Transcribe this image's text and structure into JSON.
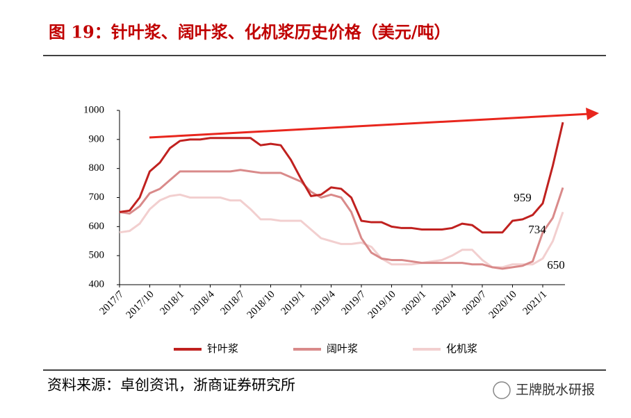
{
  "chart_data": {
    "type": "line",
    "title": "图 19：针叶浆、阔叶浆、化机浆历史价格（美元/吨）",
    "source": "资料来源：卓创资讯，浙商证券研究所",
    "brand": "王牌脱水研报",
    "categories": [
      "2017/7",
      null,
      null,
      "2017/10",
      null,
      null,
      "2018/1",
      null,
      null,
      "2018/4",
      null,
      null,
      "2018/7",
      null,
      null,
      "2018/10",
      null,
      null,
      "2019/1",
      null,
      null,
      "2019/4",
      null,
      null,
      "2019/7",
      null,
      null,
      "2019/10",
      null,
      null,
      "2020/1",
      null,
      null,
      "2020/4",
      null,
      null,
      "2020/7",
      null,
      null,
      "2020/10",
      null,
      null,
      "2021/1",
      null,
      null
    ],
    "series": [
      {
        "name": "针叶浆",
        "color": "#c0211f",
        "values": [
          650,
          655,
          700,
          790,
          820,
          870,
          895,
          900,
          900,
          905,
          905,
          905,
          905,
          905,
          880,
          885,
          880,
          830,
          765,
          705,
          710,
          735,
          730,
          700,
          620,
          615,
          615,
          600,
          595,
          595,
          590,
          590,
          590,
          595,
          610,
          605,
          580,
          580,
          580,
          620,
          625,
          640,
          680,
          810,
          959
        ],
        "value_labels": [
          null,
          null,
          null,
          null,
          null,
          null,
          null,
          null,
          null,
          null,
          null,
          null,
          null,
          null,
          null,
          null,
          null,
          null,
          null,
          null,
          null,
          null,
          null,
          null,
          null,
          null,
          null,
          null,
          null,
          null,
          null,
          null,
          null,
          null,
          null,
          null,
          null,
          null,
          null,
          null,
          null,
          null,
          null,
          null,
          "959"
        ]
      },
      {
        "name": "阔叶浆",
        "color": "#d98a8a",
        "values": [
          650,
          645,
          670,
          715,
          730,
          760,
          790,
          790,
          790,
          790,
          790,
          790,
          795,
          790,
          785,
          785,
          785,
          770,
          755,
          720,
          700,
          710,
          700,
          650,
          560,
          510,
          490,
          485,
          485,
          480,
          475,
          475,
          475,
          475,
          475,
          470,
          470,
          460,
          455,
          460,
          465,
          480,
          580,
          630,
          734
        ],
        "value_labels": [
          null,
          null,
          null,
          null,
          null,
          null,
          null,
          null,
          null,
          null,
          null,
          null,
          null,
          null,
          null,
          null,
          null,
          null,
          null,
          null,
          null,
          null,
          null,
          null,
          null,
          null,
          null,
          null,
          null,
          null,
          null,
          null,
          null,
          null,
          null,
          null,
          null,
          null,
          null,
          null,
          null,
          null,
          null,
          null,
          "734"
        ]
      },
      {
        "name": "化机浆",
        "color": "#f2cfcf",
        "values": [
          580,
          585,
          610,
          660,
          690,
          705,
          710,
          700,
          700,
          700,
          700,
          690,
          690,
          660,
          625,
          625,
          620,
          620,
          620,
          590,
          560,
          550,
          540,
          540,
          545,
          530,
          490,
          470,
          470,
          470,
          475,
          480,
          485,
          500,
          520,
          520,
          485,
          460,
          460,
          470,
          470,
          470,
          490,
          550,
          650
        ],
        "value_labels": [
          null,
          null,
          null,
          null,
          null,
          null,
          null,
          null,
          null,
          null,
          null,
          null,
          null,
          null,
          null,
          null,
          null,
          null,
          null,
          null,
          null,
          null,
          null,
          null,
          null,
          null,
          null,
          null,
          null,
          null,
          null,
          null,
          null,
          null,
          null,
          null,
          null,
          null,
          null,
          null,
          null,
          null,
          null,
          null,
          "650"
        ]
      }
    ],
    "ylim": [
      400,
      1000
    ],
    "yticks": [
      400,
      500,
      600,
      700,
      800,
      900,
      1000
    ]
  }
}
